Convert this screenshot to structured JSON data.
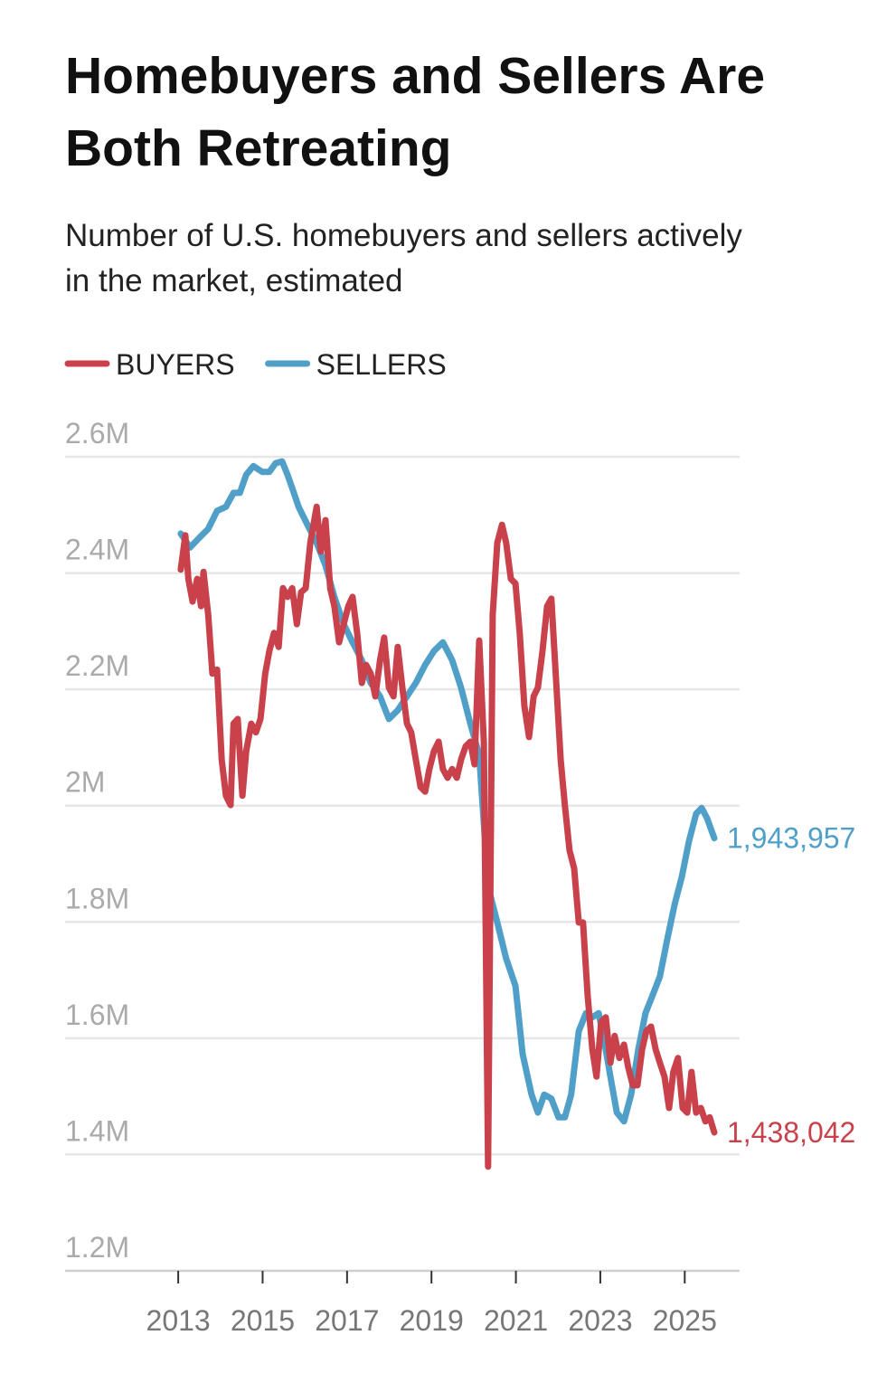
{
  "chart_data": {
    "type": "line",
    "title": "Homebuyers and Sellers Are Both Retreating",
    "subtitle": "Number of U.S. homebuyers and sellers actively in the market, estimated",
    "xlim": [
      2010.32,
      2026.3
    ],
    "xticks": [
      2013,
      2015,
      2017,
      2019,
      2021,
      2023,
      2025
    ],
    "ylim": [
      1200000,
      2600000
    ],
    "yticks": [
      {
        "value": 1200000,
        "label": "1.2M"
      },
      {
        "value": 1400000,
        "label": "1.4M"
      },
      {
        "value": 1600000,
        "label": "1.6M"
      },
      {
        "value": 1800000,
        "label": "1.8M"
      },
      {
        "value": 2000000,
        "label": "2M"
      },
      {
        "value": 2200000,
        "label": "2.2M"
      },
      {
        "value": 2400000,
        "label": "2.4M"
      },
      {
        "value": 2600000,
        "label": "2.6M"
      }
    ],
    "grid": true,
    "legend": "top-left",
    "series": [
      {
        "name": "BUYERS",
        "color": "#c8414b",
        "end_label": "1,438,042",
        "x": [
          2013.06,
          2013.17,
          2013.24,
          2013.34,
          2013.45,
          2013.54,
          2013.6,
          2013.71,
          2013.81,
          2013.92,
          2014.03,
          2014.13,
          2014.24,
          2014.31,
          2014.41,
          2014.52,
          2014.61,
          2014.73,
          2014.84,
          2014.95,
          2015.06,
          2015.16,
          2015.27,
          2015.38,
          2015.48,
          2015.59,
          2015.7,
          2015.81,
          2015.91,
          2016.02,
          2016.13,
          2016.28,
          2016.38,
          2016.49,
          2016.6,
          2016.7,
          2016.81,
          2016.92,
          2017.03,
          2017.13,
          2017.24,
          2017.35,
          2017.45,
          2017.56,
          2017.67,
          2017.78,
          2017.88,
          2017.99,
          2018.1,
          2018.2,
          2018.31,
          2018.42,
          2018.52,
          2018.63,
          2018.74,
          2018.85,
          2018.95,
          2019.06,
          2019.17,
          2019.27,
          2019.38,
          2019.49,
          2019.6,
          2019.7,
          2019.81,
          2019.92,
          2020.02,
          2020.13,
          2020.24,
          2020.34,
          2020.45,
          2020.56,
          2020.67,
          2020.77,
          2020.88,
          2020.99,
          2021.09,
          2021.2,
          2021.31,
          2021.42,
          2021.52,
          2021.63,
          2021.74,
          2021.84,
          2021.95,
          2022.06,
          2022.16,
          2022.27,
          2022.38,
          2022.49,
          2022.59,
          2022.7,
          2022.81,
          2022.91,
          2023.02,
          2023.13,
          2023.24,
          2023.34,
          2023.45,
          2023.56,
          2023.66,
          2023.77,
          2023.88,
          2023.99,
          2024.09,
          2024.2,
          2024.31,
          2024.41,
          2024.52,
          2024.63,
          2024.73,
          2024.84,
          2024.95,
          2025.06,
          2025.16,
          2025.27,
          2025.38,
          2025.49,
          2025.59,
          2025.7
        ],
        "values": [
          2406000,
          2465000,
          2390000,
          2351000,
          2390000,
          2343000,
          2402000,
          2328000,
          2227000,
          2234000,
          2079000,
          2017000,
          2001000,
          2141000,
          2149000,
          2017000,
          2094000,
          2141000,
          2126000,
          2149000,
          2227000,
          2266000,
          2297000,
          2273000,
          2374000,
          2359000,
          2374000,
          2312000,
          2367000,
          2374000,
          2452000,
          2514000,
          2437000,
          2491000,
          2374000,
          2343000,
          2281000,
          2312000,
          2343000,
          2359000,
          2297000,
          2211000,
          2242000,
          2227000,
          2188000,
          2250000,
          2289000,
          2203000,
          2188000,
          2273000,
          2203000,
          2141000,
          2126000,
          2079000,
          2032000,
          2024000,
          2063000,
          2094000,
          2110000,
          2063000,
          2048000,
          2063000,
          2048000,
          2079000,
          2102000,
          2110000,
          2071000,
          2284000,
          2110000,
          1379000,
          2328000,
          2452000,
          2483000,
          2452000,
          2390000,
          2382000,
          2297000,
          2172000,
          2118000,
          2188000,
          2203000,
          2266000,
          2343000,
          2356000,
          2219000,
          2079000,
          2001000,
          1923000,
          1892000,
          1799000,
          1799000,
          1674000,
          1581000,
          1534000,
          1628000,
          1636000,
          1558000,
          1604000,
          1566000,
          1589000,
          1550000,
          1519000,
          1519000,
          1581000,
          1612000,
          1620000,
          1581000,
          1558000,
          1534000,
          1480000,
          1542000,
          1566000,
          1480000,
          1472000,
          1542000,
          1472000,
          1480000,
          1457000,
          1464000,
          1438042
        ]
      },
      {
        "name": "SELLERS",
        "color": "#4f9fc8",
        "end_label": "1,943,957",
        "x": [
          2013.06,
          2013.28,
          2013.49,
          2013.71,
          2013.92,
          2014.13,
          2014.31,
          2014.46,
          2014.61,
          2014.78,
          2014.99,
          2015.16,
          2015.31,
          2015.46,
          2015.59,
          2015.74,
          2015.85,
          2016.06,
          2016.28,
          2016.49,
          2016.7,
          2016.92,
          2017.13,
          2017.35,
          2017.56,
          2017.78,
          2017.99,
          2018.2,
          2018.42,
          2018.63,
          2018.85,
          2019.06,
          2019.27,
          2019.49,
          2019.7,
          2019.92,
          2020.13,
          2020.34,
          2020.56,
          2020.77,
          2020.99,
          2021.16,
          2021.37,
          2021.52,
          2021.67,
          2021.84,
          2022.01,
          2022.16,
          2022.31,
          2022.49,
          2022.66,
          2022.81,
          2022.96,
          2023.09,
          2023.24,
          2023.39,
          2023.56,
          2023.73,
          2023.9,
          2024.07,
          2024.24,
          2024.41,
          2024.58,
          2024.76,
          2024.93,
          2025.1,
          2025.27,
          2025.4,
          2025.53,
          2025.7
        ],
        "values": [
          2468000,
          2444000,
          2460000,
          2476000,
          2507000,
          2514000,
          2538000,
          2538000,
          2569000,
          2584000,
          2574000,
          2574000,
          2589000,
          2592000,
          2569000,
          2538000,
          2514000,
          2483000,
          2452000,
          2413000,
          2359000,
          2312000,
          2281000,
          2250000,
          2211000,
          2188000,
          2149000,
          2164000,
          2188000,
          2211000,
          2242000,
          2266000,
          2281000,
          2250000,
          2203000,
          2141000,
          2087000,
          1861000,
          1799000,
          1737000,
          1690000,
          1573000,
          1503000,
          1472000,
          1503000,
          1496000,
          1464000,
          1464000,
          1503000,
          1612000,
          1643000,
          1636000,
          1643000,
          1597000,
          1534000,
          1472000,
          1457000,
          1503000,
          1581000,
          1643000,
          1674000,
          1706000,
          1768000,
          1830000,
          1877000,
          1939000,
          1986000,
          1996000,
          1978000,
          1943957
        ]
      }
    ]
  }
}
